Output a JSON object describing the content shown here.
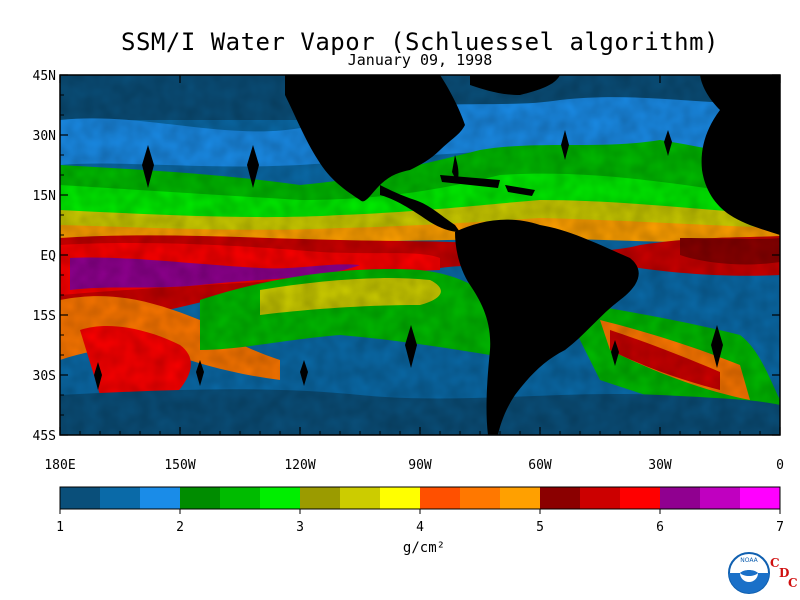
{
  "title": "SSM/I Water Vapor (Schluessel algorithm)",
  "subtitle": "January 09, 1998",
  "lat_labels": [
    "45N",
    "30N",
    "15N",
    "EQ",
    "15S",
    "30S",
    "45S"
  ],
  "lon_labels": [
    "180E",
    "150W",
    "120W",
    "90W",
    "60W",
    "30W",
    "0"
  ],
  "colorbar": {
    "colors": [
      "#0a4f7a",
      "#0a6aa8",
      "#1a8ce8",
      "#008c00",
      "#00bb00",
      "#00ee00",
      "#9b9b00",
      "#cccc00",
      "#ffff00",
      "#ff5000",
      "#ff7800",
      "#ffa000",
      "#8b0000",
      "#cc0000",
      "#ff0000",
      "#900090",
      "#c000c0",
      "#ff00ff"
    ],
    "tick_labels": [
      "1",
      "2",
      "3",
      "4",
      "5",
      "6",
      "7"
    ],
    "units": "g/cm²"
  },
  "land_color": "#000000",
  "logo": {
    "text": "NOAA",
    "cdc": [
      "C",
      "D",
      "C"
    ]
  }
}
